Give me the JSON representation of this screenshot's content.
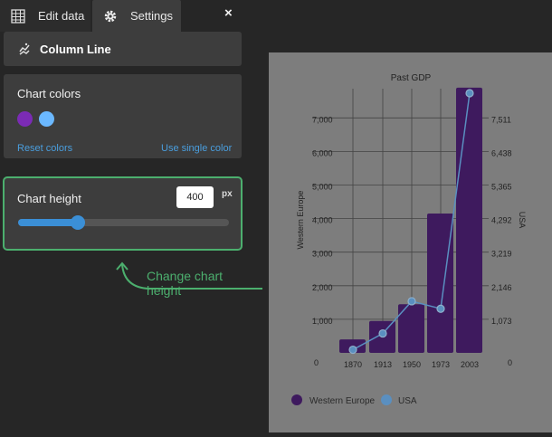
{
  "tabs": [
    {
      "label": "Edit data",
      "icon": "table-icon"
    },
    {
      "label": "Settings",
      "icon": "gear-icon"
    }
  ],
  "close_icon": "×",
  "chart_type": {
    "label": "Column Line",
    "icon": "column-line-icon"
  },
  "chart_colors": {
    "title": "Chart colors",
    "swatches": [
      "#7b2bb5",
      "#6bb8ff"
    ],
    "reset_label": "Reset colors",
    "single_label": "Use single color"
  },
  "chart_height": {
    "title": "Chart height",
    "value": "400",
    "unit": "px",
    "slider_percent": 28
  },
  "annotation": "Change chart height",
  "chart_data": {
    "type": "bar",
    "title": "Past GDP",
    "categories": [
      "1870",
      "1913",
      "1950",
      "1973",
      "2003"
    ],
    "series": [
      {
        "name": "Western Europe",
        "type": "column",
        "axis": "left",
        "color": "#3e1a5e",
        "values": [
          400,
          950,
          1450,
          4150,
          7900
        ]
      },
      {
        "name": "USA",
        "type": "line",
        "axis": "right",
        "color": "#5a8fc0",
        "values": [
          100,
          620,
          1650,
          1410,
          8300
        ]
      }
    ],
    "left_axis": {
      "label": "Western Europe",
      "ticks": [
        "0",
        "1,000",
        "2,000",
        "3,000",
        "4,000",
        "5,000",
        "6,000",
        "7,000"
      ]
    },
    "right_axis": {
      "label": "USA",
      "ticks": [
        "0",
        "1,073",
        "2,146",
        "3,219",
        "4,292",
        "5,365",
        "6,438",
        "7,511"
      ]
    },
    "legend": [
      "Western Europe",
      "USA"
    ],
    "legend_position": "bottom",
    "grid": true
  }
}
